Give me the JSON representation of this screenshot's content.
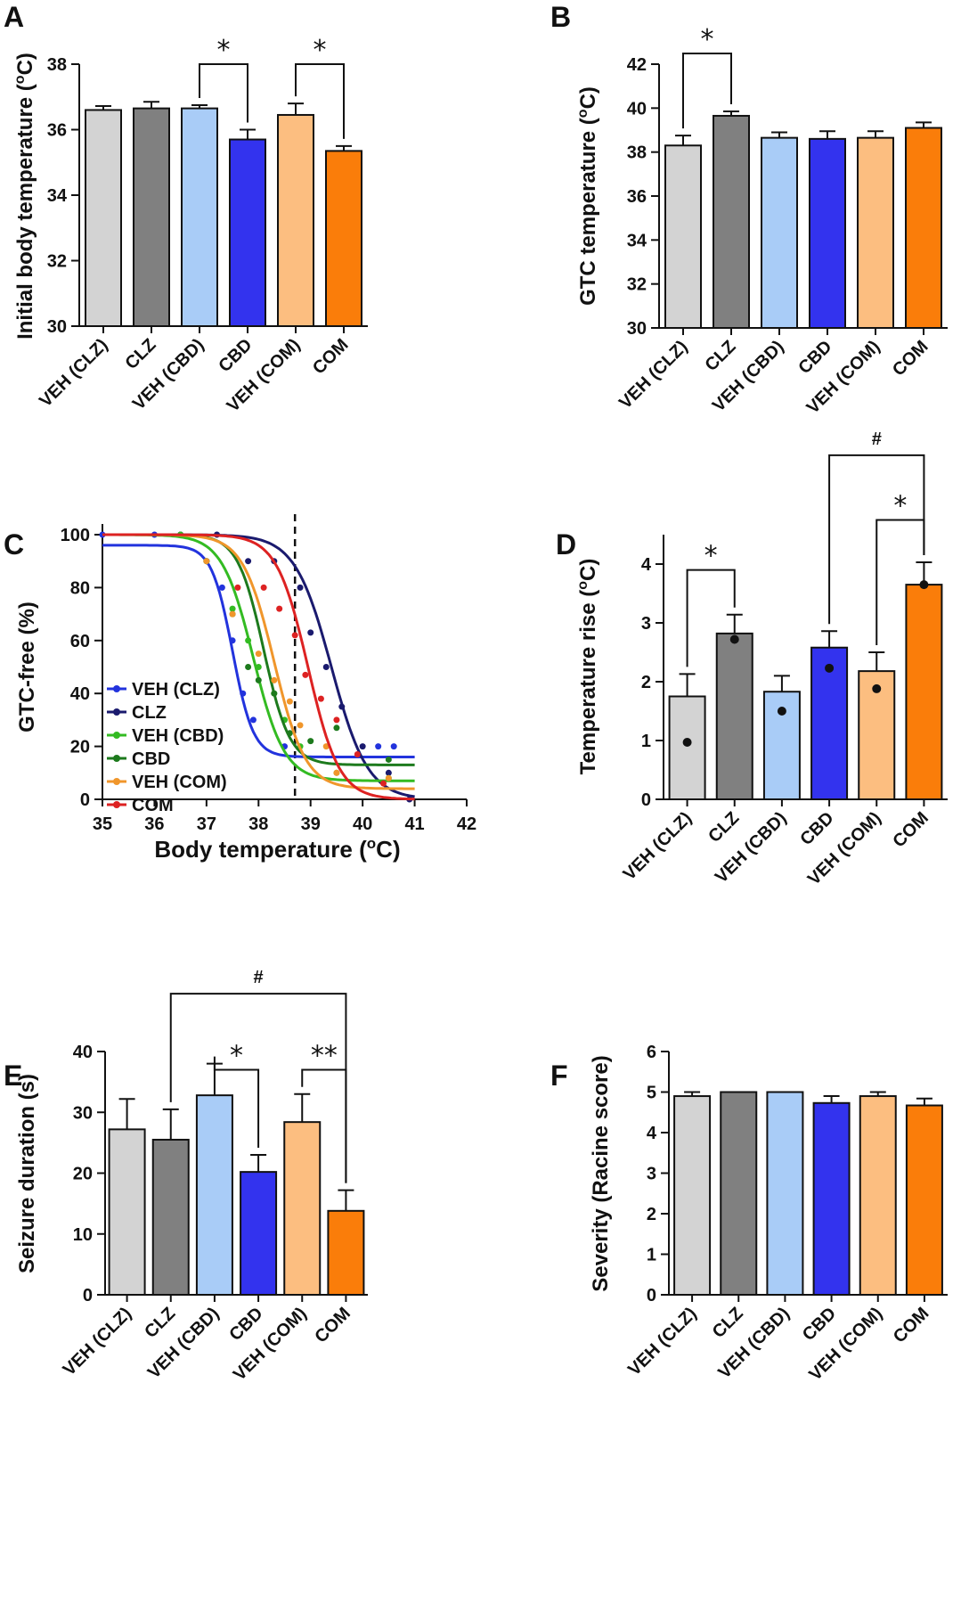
{
  "figure": {
    "colors": {
      "VEH (CLZ)": "#d3d3d3",
      "CLZ": "#808080",
      "VEH (CBD)": "#a9ccf7",
      "CBD": "#3333ee",
      "VEH (COM)": "#fcbe80",
      "COM": "#fa7d0a"
    },
    "curve_colors": {
      "VEH (CLZ)": "#2233dd",
      "CLZ": "#1a1a6e",
      "VEH (CBD)": "#33bb22",
      "CBD": "#1d7a1d",
      "VEH (COM)": "#f0962b",
      "COM": "#dd2222"
    }
  },
  "chart_data": [
    {
      "panel": "A",
      "type": "bar",
      "ylabel": "Initial body temperature (°C)",
      "ylabel_prefix": "Initial body temperature (",
      "ylabel_sup": "o",
      "ylabel_suffix": "C)",
      "categories": [
        "VEH (CLZ)",
        "CLZ",
        "VEH (CBD)",
        "CBD",
        "VEH (COM)",
        "COM"
      ],
      "values": [
        36.6,
        36.65,
        36.65,
        35.7,
        36.45,
        35.35
      ],
      "errors": [
        0.12,
        0.2,
        0.1,
        0.3,
        0.35,
        0.15
      ],
      "ylim": [
        30,
        38
      ],
      "yticks": [
        30,
        32,
        34,
        36,
        38
      ],
      "brackets": [
        {
          "from": 2,
          "to": 3,
          "label": "*"
        },
        {
          "from": 4,
          "to": 5,
          "label": "*"
        }
      ]
    },
    {
      "panel": "B",
      "type": "bar",
      "ylabel": "GTC temperature (°C)",
      "ylabel_prefix": "GTC temperature (",
      "ylabel_sup": "o",
      "ylabel_suffix": "C)",
      "categories": [
        "VEH (CLZ)",
        "CLZ",
        "VEH (CBD)",
        "CBD",
        "VEH (COM)",
        "COM"
      ],
      "values": [
        38.3,
        39.65,
        38.65,
        38.6,
        38.65,
        39.1
      ],
      "errors": [
        0.45,
        0.2,
        0.25,
        0.35,
        0.3,
        0.25
      ],
      "ylim": [
        30,
        42
      ],
      "yticks": [
        30,
        32,
        34,
        36,
        38,
        40,
        42
      ],
      "brackets": [
        {
          "from": 0,
          "to": 1,
          "label": "*"
        }
      ]
    },
    {
      "panel": "C",
      "type": "line",
      "ylabel": "GTC-free (%)",
      "xlabel_prefix": "Body temperature (",
      "xlabel_sup": "o",
      "xlabel_suffix": "C)",
      "xlim": [
        35,
        42
      ],
      "ylim": [
        0,
        100
      ],
      "xticks": [
        35,
        36,
        37,
        38,
        39,
        40,
        41,
        42
      ],
      "yticks": [
        0,
        20,
        40,
        60,
        80,
        100
      ],
      "threshold_x": 38.7,
      "series": [
        {
          "name": "VEH (CLZ)",
          "top": 96,
          "bottom": 16,
          "x50": 37.5,
          "slope": 0.2,
          "points": [
            [
              35,
              100
            ],
            [
              36,
              100
            ],
            [
              36.5,
              100
            ],
            [
              37,
              90
            ],
            [
              37.3,
              80
            ],
            [
              37.5,
              60
            ],
            [
              37.7,
              40
            ],
            [
              37.9,
              30
            ],
            [
              38.5,
              20
            ],
            [
              40.3,
              20
            ],
            [
              40.6,
              20
            ]
          ]
        },
        {
          "name": "CLZ",
          "top": 100,
          "bottom": 0,
          "x50": 39.4,
          "slope": 0.35,
          "points": [
            [
              36.5,
              100
            ],
            [
              37.2,
              100
            ],
            [
              37.8,
              90
            ],
            [
              38.3,
              90
            ],
            [
              38.8,
              80
            ],
            [
              39,
              63
            ],
            [
              39.3,
              50
            ],
            [
              39.6,
              35
            ],
            [
              40,
              20
            ],
            [
              40.5,
              10
            ],
            [
              40.9,
              0
            ]
          ]
        },
        {
          "name": "VEH (CBD)",
          "top": 100,
          "bottom": 7,
          "x50": 37.9,
          "slope": 0.3,
          "points": [
            [
              36.5,
              100
            ],
            [
              37,
              90
            ],
            [
              37.5,
              72
            ],
            [
              37.8,
              60
            ],
            [
              38,
              50
            ],
            [
              38.3,
              40
            ],
            [
              38.5,
              30
            ],
            [
              38.8,
              20
            ],
            [
              39.5,
              10
            ],
            [
              40.5,
              8
            ]
          ]
        },
        {
          "name": "CBD",
          "top": 100,
          "bottom": 13,
          "x50": 38.1,
          "slope": 0.25,
          "points": [
            [
              37,
              90
            ],
            [
              37.5,
              70
            ],
            [
              37.8,
              50
            ],
            [
              38,
              45
            ],
            [
              38.3,
              40
            ],
            [
              38.6,
              25
            ],
            [
              39,
              22
            ],
            [
              39.5,
              27
            ],
            [
              40.5,
              15
            ]
          ]
        },
        {
          "name": "VEH (COM)",
          "top": 100,
          "bottom": 4,
          "x50": 38.3,
          "slope": 0.3,
          "points": [
            [
              37,
              90
            ],
            [
              37.5,
              70
            ],
            [
              38,
              55
            ],
            [
              38.3,
              45
            ],
            [
              38.6,
              37
            ],
            [
              38.8,
              28
            ],
            [
              39.3,
              20
            ],
            [
              39.5,
              10
            ],
            [
              40.5,
              8
            ]
          ]
        },
        {
          "name": "COM",
          "top": 100,
          "bottom": 0,
          "x50": 38.95,
          "slope": 0.3,
          "points": [
            [
              37.6,
              80
            ],
            [
              38.1,
              80
            ],
            [
              38.4,
              72
            ],
            [
              38.7,
              62
            ],
            [
              38.9,
              47
            ],
            [
              39.2,
              38
            ],
            [
              39.5,
              30
            ],
            [
              39.9,
              17
            ],
            [
              40.4,
              6
            ]
          ]
        }
      ]
    },
    {
      "panel": "D",
      "type": "bar",
      "ylabel": "Temperature rise (°C)",
      "ylabel_prefix": "Temperature rise (",
      "ylabel_sup": "o",
      "ylabel_suffix": "C)",
      "categories": [
        "VEH (CLZ)",
        "CLZ",
        "VEH (CBD)",
        "CBD",
        "VEH (COM)",
        "COM"
      ],
      "values": [
        1.75,
        2.82,
        1.83,
        2.58,
        2.18,
        3.65
      ],
      "errors": [
        0.38,
        0.32,
        0.27,
        0.28,
        0.32,
        0.38
      ],
      "dots": [
        0.97,
        2.72,
        1.5,
        2.23,
        1.88,
        3.65
      ],
      "ylim": [
        0,
        4.5
      ],
      "yticks": [
        0,
        1,
        2,
        3,
        4
      ],
      "brackets": [
        {
          "from": 0,
          "to": 1,
          "label": "*"
        },
        {
          "from": 4,
          "to": 5,
          "label": "*"
        },
        {
          "from": 3,
          "to": 5,
          "label": "#"
        }
      ]
    },
    {
      "panel": "E",
      "type": "bar",
      "ylabel": "Seizure duration (s)",
      "categories": [
        "VEH (CLZ)",
        "CLZ",
        "VEH (CBD)",
        "CBD",
        "VEH (COM)",
        "COM"
      ],
      "values": [
        27.2,
        25.5,
        32.8,
        20.2,
        28.4,
        13.8
      ],
      "errors": [
        5,
        5,
        5.2,
        2.8,
        4.6,
        3.4
      ],
      "ylim": [
        0,
        40
      ],
      "yticks": [
        0,
        10,
        20,
        30,
        40
      ],
      "brackets": [
        {
          "from": 2,
          "to": 3,
          "label": "*"
        },
        {
          "from": 4,
          "to": 5,
          "label": "**"
        },
        {
          "from": 1,
          "to": 5,
          "label": "#"
        }
      ]
    },
    {
      "panel": "F",
      "type": "bar",
      "ylabel": "Severity (Racine score)",
      "categories": [
        "VEH (CLZ)",
        "CLZ",
        "VEH (CBD)",
        "CBD",
        "VEH (COM)",
        "COM"
      ],
      "values": [
        4.9,
        5.0,
        5.0,
        4.73,
        4.9,
        4.67
      ],
      "errors": [
        0.1,
        0,
        0,
        0.17,
        0.1,
        0.17
      ],
      "ylim": [
        0,
        6
      ],
      "yticks": [
        0,
        1,
        2,
        3,
        4,
        5,
        6
      ],
      "brackets": []
    }
  ]
}
